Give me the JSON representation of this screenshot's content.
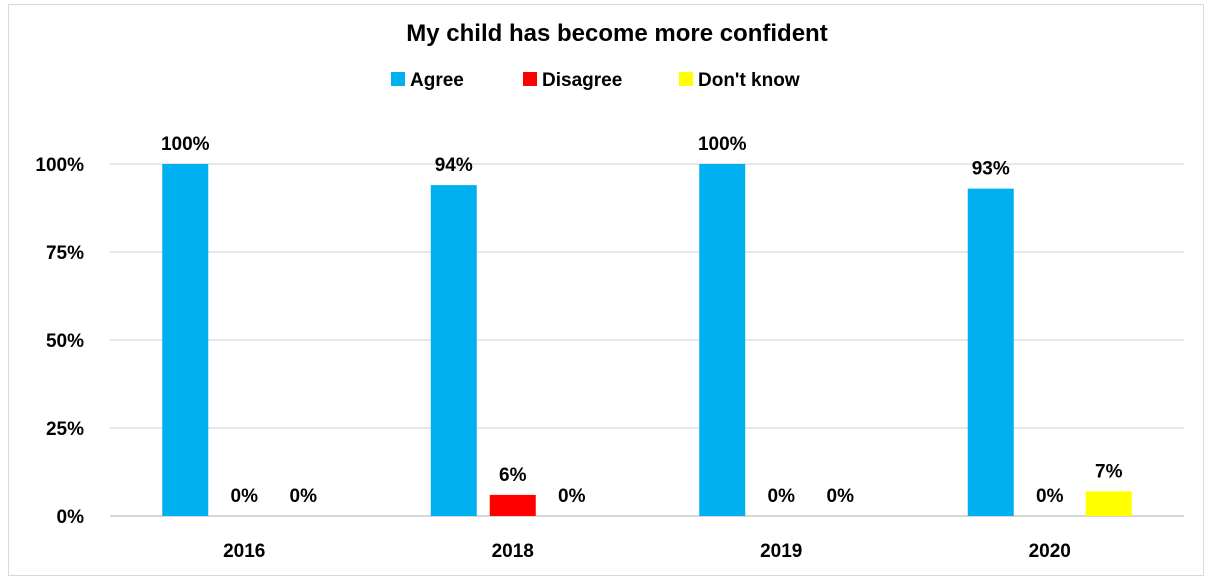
{
  "chart_data": {
    "type": "bar",
    "title": "My child has become more confident",
    "categories": [
      "2016",
      "2018",
      "2019",
      "2020"
    ],
    "series": [
      {
        "name": "Agree",
        "color": "#00b0f0",
        "values": [
          100,
          94,
          100,
          93
        ]
      },
      {
        "name": "Disagree",
        "color": "#ff0000",
        "values": [
          0,
          6,
          0,
          0
        ]
      },
      {
        "name": "Don't know",
        "color": "#ffff00",
        "values": [
          0,
          0,
          0,
          7
        ]
      }
    ],
    "value_labels": [
      [
        "100%",
        "94%",
        "100%",
        "93%"
      ],
      [
        "0%",
        "6%",
        "0%",
        "0%"
      ],
      [
        "0%",
        "0%",
        "0%",
        "7%"
      ]
    ],
    "ylim": [
      0,
      100
    ],
    "yticks": [
      0,
      25,
      50,
      75,
      100
    ],
    "ytick_labels": [
      "0%",
      "25%",
      "50%",
      "75%",
      "100%"
    ],
    "grid": true,
    "legend_position": "top",
    "xlabel": "",
    "ylabel": ""
  }
}
